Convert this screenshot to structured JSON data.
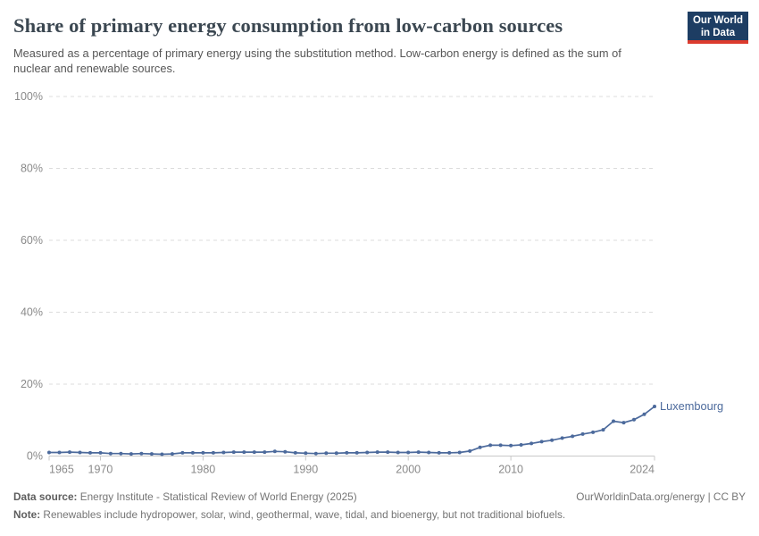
{
  "header": {
    "title": "Share of primary energy consumption from low-carbon sources",
    "subtitle": "Measured as a percentage of primary energy using the substitution method. Low-carbon energy is defined as the sum of nuclear and renewable sources.",
    "logo": {
      "line1": "Our World",
      "line2": "in Data"
    }
  },
  "chart_data": {
    "type": "line",
    "title": "Share of primary energy consumption from low-carbon sources",
    "entity": "Luxembourg",
    "unit": "%",
    "xlabel": "",
    "ylabel": "",
    "grid": true,
    "legend_position": "end-of-line",
    "line_color": "#4C6A9C",
    "ylim": [
      0,
      100
    ],
    "yticks": [
      0,
      20,
      40,
      60,
      80,
      100
    ],
    "ytick_labels": [
      "0%",
      "20%",
      "40%",
      "60%",
      "80%",
      "100%"
    ],
    "xticks": [
      1965,
      1970,
      1980,
      1990,
      2000,
      2010,
      2024
    ],
    "x": [
      1965,
      1966,
      1967,
      1968,
      1969,
      1970,
      1971,
      1972,
      1973,
      1974,
      1975,
      1976,
      1977,
      1978,
      1979,
      1980,
      1981,
      1982,
      1983,
      1984,
      1985,
      1986,
      1987,
      1988,
      1989,
      1990,
      1991,
      1992,
      1993,
      1994,
      1995,
      1996,
      1997,
      1998,
      1999,
      2000,
      2001,
      2002,
      2003,
      2004,
      2005,
      2006,
      2007,
      2008,
      2009,
      2010,
      2011,
      2012,
      2013,
      2014,
      2015,
      2016,
      2017,
      2018,
      2019,
      2020,
      2021,
      2022,
      2023,
      2024
    ],
    "values": [
      1.0,
      1.0,
      1.1,
      1.0,
      0.9,
      0.9,
      0.7,
      0.7,
      0.6,
      0.7,
      0.6,
      0.5,
      0.6,
      0.9,
      0.9,
      0.9,
      0.9,
      1.0,
      1.1,
      1.1,
      1.1,
      1.1,
      1.3,
      1.2,
      0.9,
      0.8,
      0.7,
      0.8,
      0.8,
      0.9,
      0.9,
      1.0,
      1.1,
      1.1,
      1.0,
      1.0,
      1.1,
      1.0,
      0.9,
      0.9,
      1.0,
      1.4,
      2.4,
      3.0,
      3.0,
      2.9,
      3.1,
      3.5,
      4.0,
      4.4,
      5.0,
      5.5,
      6.1,
      6.6,
      7.3,
      9.7,
      9.3,
      10.1,
      11.6,
      13.8
    ]
  },
  "footer": {
    "datasource_label": "Data source:",
    "datasource_text": " Energy Institute - Statistical Review of World Energy (2025)",
    "rights": "OurWorldinData.org/energy | CC BY",
    "note_label": "Note:",
    "note_text": " Renewables include hydropower, solar, wind, geothermal, wave, tidal, and bioenergy, but not traditional biofuels."
  },
  "colors": {
    "title": "#3b4751",
    "subtitle": "#565656",
    "line": "#4C6A9C",
    "entity_label": "#4C6A9C",
    "gridline": "#dcdcdc",
    "axis_line": "#c8c8c8",
    "tick_label": "#8a8a8a",
    "logo_bg": "#1d3d63",
    "logo_stripe": "#dc3b2e",
    "footer_text": "#757575"
  }
}
